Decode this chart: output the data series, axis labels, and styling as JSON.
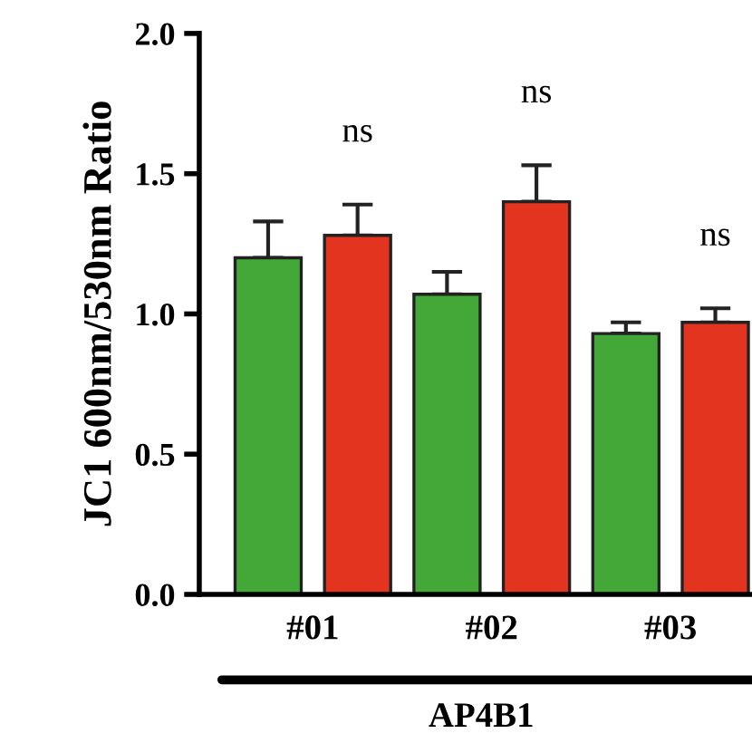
{
  "chart_data": {
    "type": "bar",
    "ylabel": "JC1 600nm/530nm Ratio",
    "xlabel": "AP4B1",
    "categories": [
      "#01",
      "#02",
      "#03"
    ],
    "series": [
      {
        "color": "#43a838",
        "values": [
          1.2,
          1.07,
          0.93
        ],
        "errors": [
          [
            1.2,
            1.33
          ],
          [
            1.07,
            1.15
          ],
          [
            0.93,
            0.97
          ]
        ]
      },
      {
        "color": "#e2341f",
        "values": [
          1.28,
          1.4,
          0.97
        ],
        "errors": [
          [
            1.28,
            1.39
          ],
          [
            1.4,
            1.53
          ],
          [
            0.97,
            1.02
          ]
        ]
      }
    ],
    "ylim": [
      0,
      2.0
    ],
    "yticks": [
      {
        "value": 0,
        "label": "0.0"
      },
      {
        "value": 0.5,
        "label": "0.5"
      },
      {
        "value": 1.0,
        "label": "1.0"
      },
      {
        "value": 1.5,
        "label": "1.5"
      },
      {
        "value": 2.0,
        "label": "2.0"
      }
    ],
    "annotations": [
      "ns",
      "ns",
      "ns"
    ],
    "grid": false,
    "legend": false
  }
}
